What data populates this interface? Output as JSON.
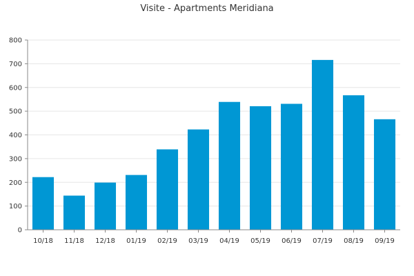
{
  "chart_data": {
    "type": "bar",
    "title": "Visite - Apartments Meridiana",
    "xlabel": "",
    "ylabel": "",
    "categories": [
      "10/18",
      "11/18",
      "12/18",
      "01/19",
      "02/19",
      "03/19",
      "04/19",
      "05/19",
      "06/19",
      "07/19",
      "08/19",
      "09/19"
    ],
    "values": [
      222,
      144,
      199,
      231,
      339,
      423,
      539,
      521,
      531,
      716,
      567,
      466
    ],
    "ylim": [
      0,
      800
    ],
    "yticks": [
      0,
      100,
      200,
      300,
      400,
      500,
      600,
      700,
      800
    ],
    "grid": true,
    "legend": "none",
    "colors": {
      "bar": "#0097d4",
      "grid": "#e6e6e6",
      "axis": "#888888"
    }
  }
}
